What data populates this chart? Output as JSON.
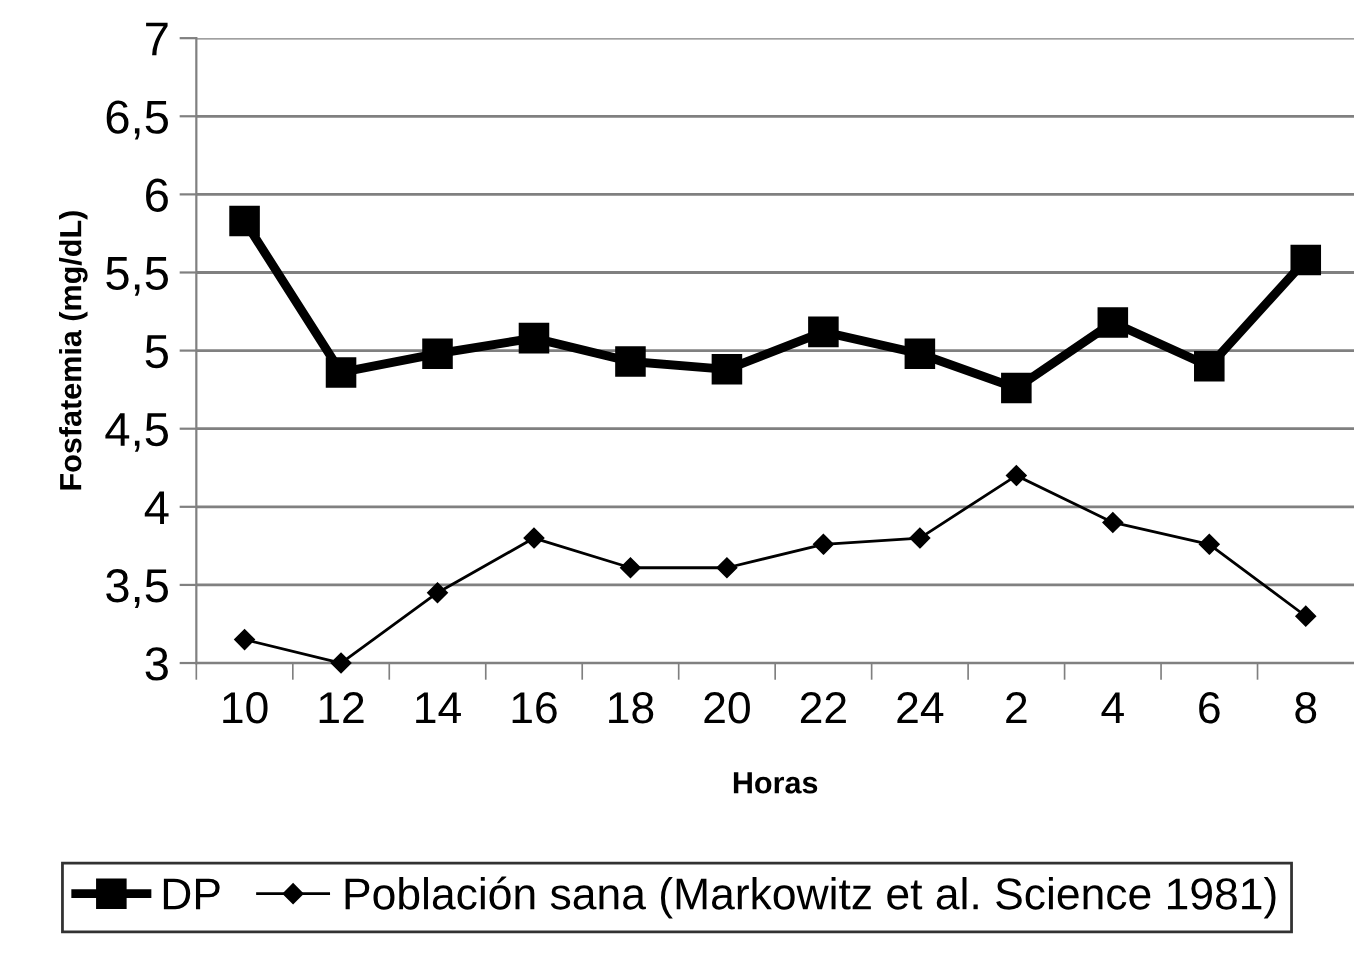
{
  "chart_data": {
    "type": "line",
    "xlabel": "Horas",
    "ylabel": "Fosfatemia (mg/dL)",
    "categories": [
      "10",
      "12",
      "14",
      "16",
      "18",
      "20",
      "22",
      "24",
      "2",
      "4",
      "6",
      "8"
    ],
    "series": [
      {
        "name": "DP",
        "color": "#000000",
        "marker": "square",
        "line_style": "solid",
        "values": [
          5.83,
          4.86,
          4.98,
          5.08,
          4.93,
          4.88,
          5.12,
          4.98,
          4.76,
          5.18,
          4.9,
          5.58
        ]
      },
      {
        "name": "Población sana (Markowitz et al. Science 1981)",
        "color": "#000000",
        "marker": "diamond",
        "line_style": "solid",
        "values": [
          3.15,
          3.0,
          3.45,
          3.8,
          3.61,
          3.61,
          3.76,
          3.8,
          4.2,
          3.9,
          3.76,
          3.3
        ]
      }
    ],
    "ylim": [
      3,
      7
    ],
    "yticks": [
      {
        "value": 3,
        "label": "3"
      },
      {
        "value": 3.5,
        "label": "3,5"
      },
      {
        "value": 4,
        "label": "4"
      },
      {
        "value": 4.5,
        "label": "4,5"
      },
      {
        "value": 5,
        "label": "5"
      },
      {
        "value": 5.5,
        "label": "5,5"
      },
      {
        "value": 6,
        "label": "6"
      },
      {
        "value": 6.5,
        "label": "6,5"
      },
      {
        "value": 7,
        "label": "7"
      }
    ],
    "grid": "y",
    "legend": "bottom"
  }
}
